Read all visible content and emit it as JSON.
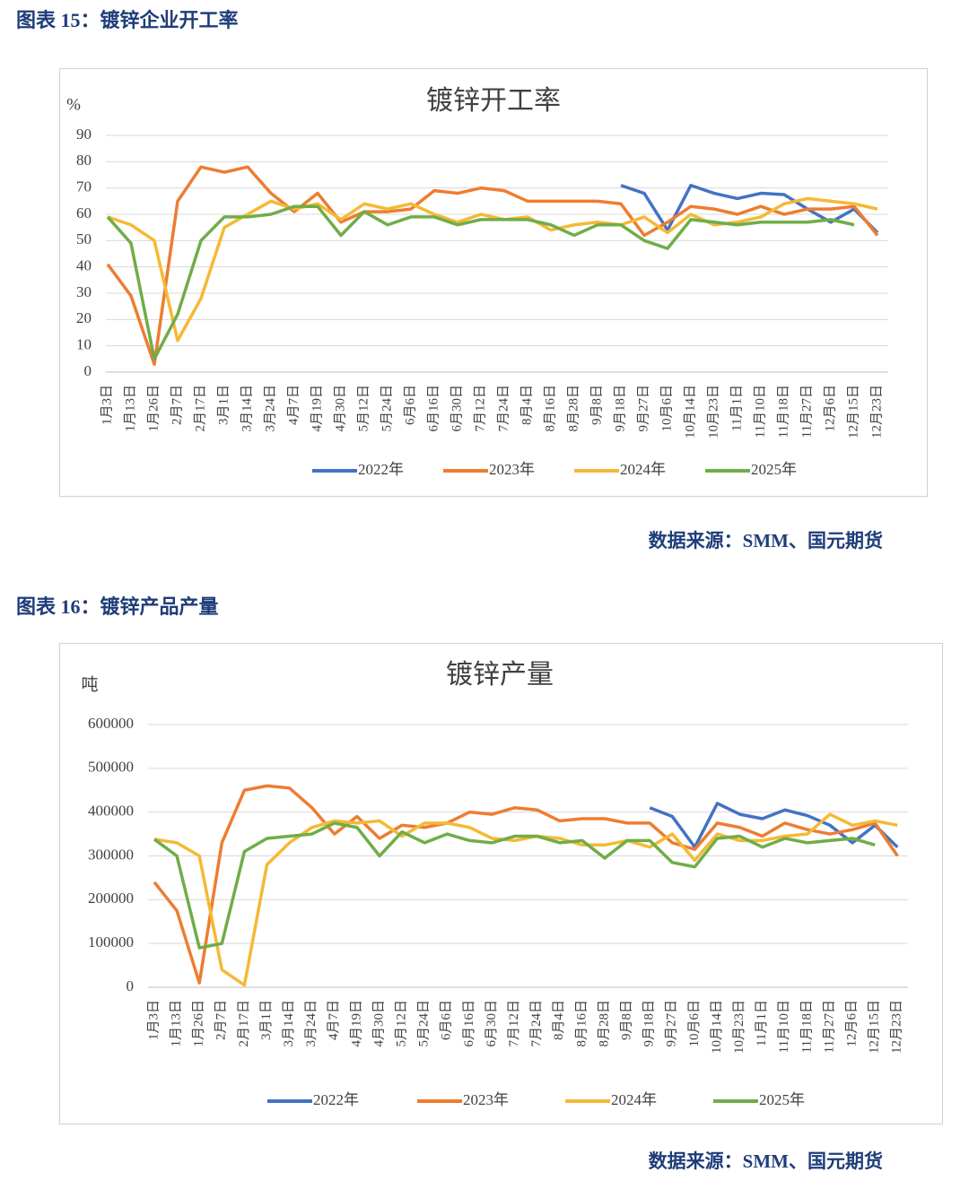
{
  "figures": [
    {
      "caption": "图表 15：镀锌企业开工率",
      "source": "数据来源：SMM、国元期货"
    },
    {
      "caption": "图表 16：镀锌产品产量",
      "source": "数据来源：SMM、国元期货"
    }
  ],
  "chart_data": [
    {
      "type": "line",
      "title": "镀锌开工率",
      "y_label": "%",
      "categories": [
        "1月3日",
        "1月13日",
        "1月26日",
        "2月7日",
        "2月17日",
        "3月1日",
        "3月14日",
        "3月24日",
        "4月7日",
        "4月19日",
        "4月30日",
        "5月12日",
        "5月24日",
        "6月6日",
        "6月16日",
        "6月30日",
        "7月12日",
        "7月24日",
        "8月4日",
        "8月16日",
        "8月28日",
        "9月8日",
        "9月18日",
        "9月27日",
        "10月6日",
        "10月14日",
        "10月23日",
        "11月1日",
        "11月10日",
        "11月18日",
        "11月27日",
        "12月6日",
        "12月15日",
        "12月23日"
      ],
      "ylim": [
        0,
        90
      ],
      "yticks": [
        0,
        10,
        20,
        30,
        40,
        50,
        60,
        70,
        80,
        90
      ],
      "grid": true,
      "legend": "bottom",
      "series": [
        {
          "name": "2022年",
          "color": "#4472c4",
          "values": [
            null,
            null,
            null,
            null,
            null,
            null,
            null,
            null,
            null,
            null,
            null,
            null,
            null,
            null,
            null,
            null,
            null,
            null,
            null,
            null,
            null,
            null,
            71,
            68,
            54,
            71,
            68,
            66,
            68,
            67.5,
            62,
            57,
            62,
            53
          ]
        },
        {
          "name": "2023年",
          "color": "#ed7d31",
          "values": [
            41,
            29,
            3,
            65,
            78,
            76,
            78,
            68,
            61,
            68,
            57,
            61,
            61,
            62,
            69,
            68,
            70,
            69,
            65,
            65,
            65,
            65,
            64,
            52,
            57,
            63,
            62,
            60,
            63,
            60,
            62,
            62,
            63,
            52
          ]
        },
        {
          "name": "2024年",
          "color": "#f5b935",
          "values": [
            59,
            56,
            50,
            12,
            28,
            55,
            60,
            65,
            62,
            64,
            58,
            64,
            62,
            64,
            60,
            57,
            60,
            58,
            59,
            54,
            56,
            57,
            56,
            59,
            53,
            60,
            56,
            57,
            59,
            64,
            66,
            65,
            64,
            62
          ]
        },
        {
          "name": "2025年",
          "color": "#70ad47",
          "values": [
            59,
            49,
            5,
            22,
            50,
            59,
            59,
            60,
            63,
            63,
            52,
            61,
            56,
            59,
            59,
            56,
            58,
            58,
            58,
            56,
            52,
            56,
            56,
            50,
            47,
            58,
            57,
            56,
            57,
            57,
            57,
            58,
            56,
            null
          ]
        }
      ]
    },
    {
      "type": "line",
      "title": "镀锌产量",
      "y_label": "吨",
      "categories": [
        "1月3日",
        "1月13日",
        "1月26日",
        "2月7日",
        "2月17日",
        "3月1日",
        "3月14日",
        "3月24日",
        "4月7日",
        "4月19日",
        "4月30日",
        "5月12日",
        "5月24日",
        "6月6日",
        "6月16日",
        "6月30日",
        "7月12日",
        "7月24日",
        "8月4日",
        "8月16日",
        "8月28日",
        "9月8日",
        "9月18日",
        "9月27日",
        "10月6日",
        "10月14日",
        "10月23日",
        "11月1日",
        "11月10日",
        "11月18日",
        "11月27日",
        "12月6日",
        "12月15日",
        "12月23日"
      ],
      "ylim": [
        0,
        600000
      ],
      "yticks": [
        0,
        100000,
        200000,
        300000,
        400000,
        500000,
        600000
      ],
      "grid": true,
      "legend": "bottom",
      "series": [
        {
          "name": "2022年",
          "color": "#4472c4",
          "values": [
            null,
            null,
            null,
            null,
            null,
            null,
            null,
            null,
            null,
            null,
            null,
            null,
            null,
            null,
            null,
            null,
            null,
            null,
            null,
            null,
            null,
            null,
            410000,
            390000,
            320000,
            420000,
            395000,
            385000,
            405000,
            392000,
            370000,
            330000,
            370000,
            320000
          ]
        },
        {
          "name": "2023年",
          "color": "#ed7d31",
          "values": [
            240000,
            175000,
            10000,
            330000,
            450000,
            460000,
            455000,
            410000,
            350000,
            390000,
            340000,
            370000,
            365000,
            375000,
            400000,
            395000,
            410000,
            405000,
            380000,
            385000,
            385000,
            375000,
            375000,
            330000,
            315000,
            375000,
            365000,
            345000,
            375000,
            360000,
            350000,
            360000,
            375000,
            300000
          ]
        },
        {
          "name": "2024年",
          "color": "#f5b935",
          "values": [
            338000,
            330000,
            300000,
            40000,
            5000,
            280000,
            330000,
            365000,
            380000,
            375000,
            380000,
            345000,
            375000,
            375000,
            365000,
            340000,
            335000,
            345000,
            340000,
            325000,
            325000,
            335000,
            320000,
            350000,
            290000,
            350000,
            335000,
            335000,
            345000,
            350000,
            395000,
            370000,
            380000,
            370000
          ]
        },
        {
          "name": "2025年",
          "color": "#70ad47",
          "values": [
            338000,
            300000,
            90000,
            100000,
            310000,
            340000,
            345000,
            350000,
            375000,
            365000,
            300000,
            355000,
            330000,
            350000,
            335000,
            330000,
            345000,
            345000,
            330000,
            335000,
            295000,
            335000,
            335000,
            285000,
            275000,
            340000,
            345000,
            320000,
            340000,
            330000,
            335000,
            340000,
            325000,
            null
          ]
        }
      ]
    }
  ]
}
